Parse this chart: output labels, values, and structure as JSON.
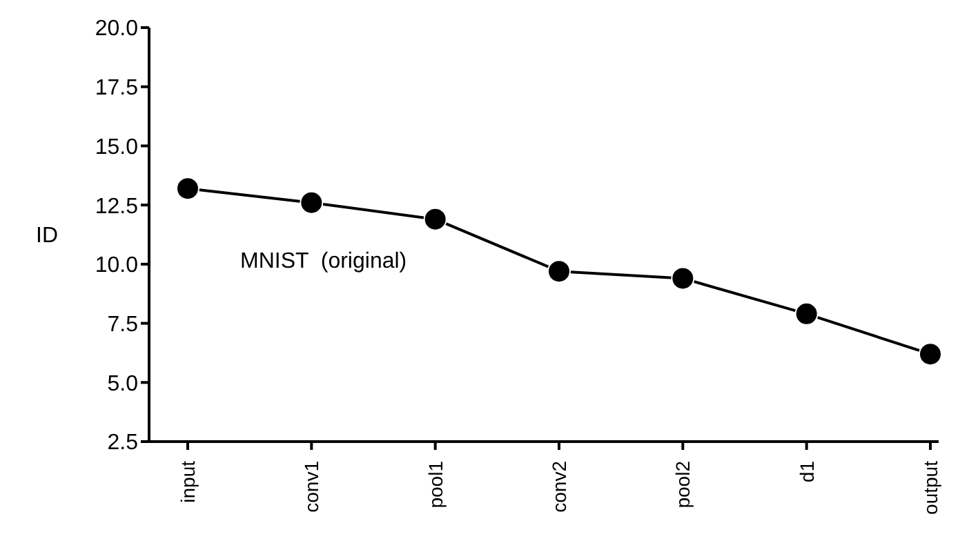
{
  "chart_data": {
    "type": "line",
    "ylabel": "ID",
    "categories": [
      "input",
      "conv1",
      "pool1",
      "conv2",
      "pool2",
      "d1",
      "output"
    ],
    "series": [
      {
        "color": "#000000",
        "values": [
          13.2,
          12.6,
          11.9,
          9.7,
          9.4,
          7.9,
          6.2
        ]
      }
    ],
    "ylim": [
      2.5,
      20
    ],
    "yticks": [
      {
        "value": 2.5,
        "label": "2.5"
      },
      {
        "value": 5,
        "label": "5.0"
      },
      {
        "value": 7.5,
        "label": "7.5"
      },
      {
        "value": 10,
        "label": "10.0"
      },
      {
        "value": 12.5,
        "label": "12.5"
      },
      {
        "value": 15,
        "label": "15.0"
      },
      {
        "value": 17.5,
        "label": "17.5"
      },
      {
        "value": 20,
        "label": "20.0"
      }
    ],
    "marker": "circle",
    "line_style": "solid",
    "grid": false,
    "legend": false,
    "annotations": [
      "MNIST  (original)"
    ]
  }
}
